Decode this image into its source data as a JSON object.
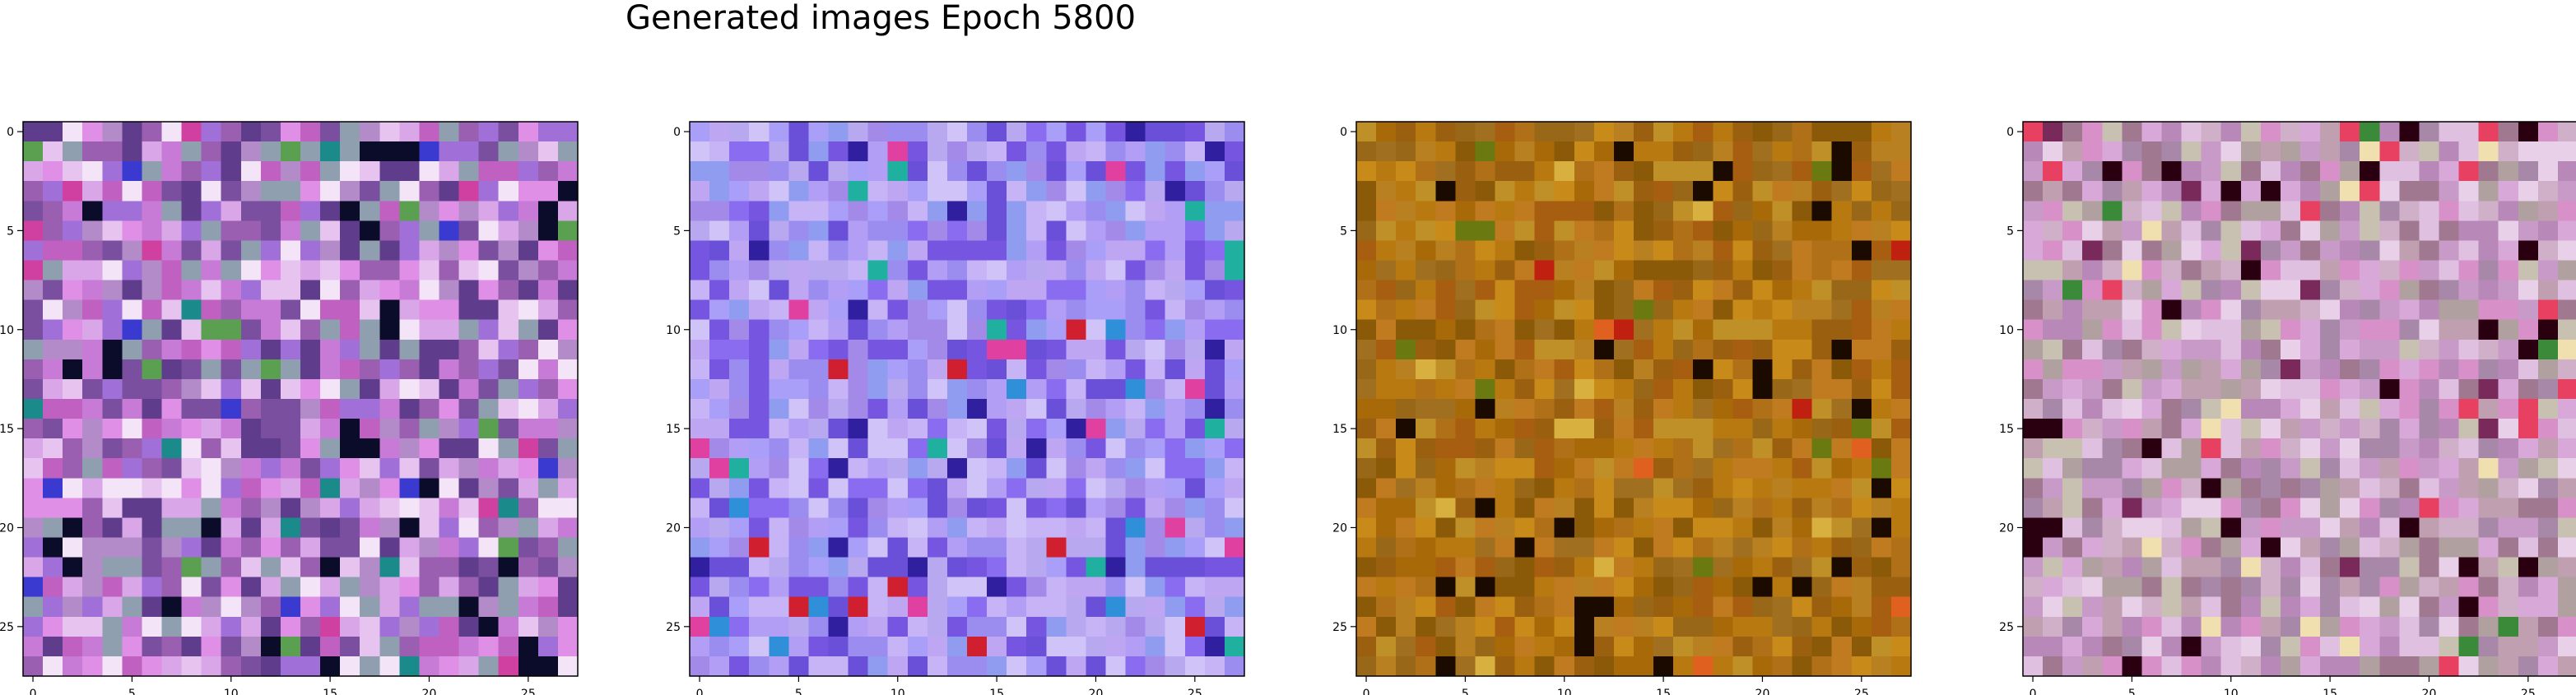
{
  "figure": {
    "suptitle": "Generated images Epoch 5800"
  },
  "chart_data": [
    {
      "type": "heatmap",
      "grid_size": [
        28,
        28
      ],
      "xticks": [
        0,
        5,
        10,
        15,
        20,
        25
      ],
      "yticks": [
        0,
        5,
        10,
        15,
        20,
        25
      ],
      "xlim": [
        -0.5,
        27.5
      ],
      "ylim": [
        27.5,
        -0.5
      ],
      "grid": false,
      "palette": [
        "#9a5fb0",
        "#c77ad6",
        "#e08fe6",
        "#b48bc9",
        "#d9a6e8",
        "#7a4fa0",
        "#e7c3f0",
        "#8f9fb0",
        "#5f3c8c",
        "#f3e4f7",
        "#c060c0",
        "#a070d8"
      ],
      "dark_color": "#0b0b2a",
      "accent_colors": [
        "#1a8a8a",
        "#3a3ad0",
        "#5aa050",
        "#d040a0"
      ]
    },
    {
      "type": "heatmap",
      "grid_size": [
        28,
        28
      ],
      "xticks": [
        0,
        5,
        10,
        15,
        20,
        25
      ],
      "yticks": [
        0,
        5,
        10,
        15,
        20,
        25
      ],
      "xlim": [
        -0.5,
        27.5
      ],
      "ylim": [
        27.5,
        -0.5
      ],
      "grid": false,
      "palette": [
        "#9b8cf0",
        "#8a6cf0",
        "#b39ef5",
        "#a48ae8",
        "#c6b4f7",
        "#7656e0",
        "#b8a8ef",
        "#d0c3f8",
        "#6a4fd8",
        "#a99ef8",
        "#8f9cf0",
        "#bfa6f2"
      ],
      "dark_color": "#3020a0",
      "accent_colors": [
        "#2f8fd8",
        "#e040a0",
        "#20b0a0",
        "#d02030"
      ]
    },
    {
      "type": "heatmap",
      "grid_size": [
        28,
        28
      ],
      "xticks": [
        0,
        5,
        10,
        15,
        20,
        25
      ],
      "yticks": [
        0,
        5,
        10,
        15,
        20,
        25
      ],
      "xlim": [
        -0.5,
        27.5
      ],
      "ylim": [
        27.5,
        -0.5
      ],
      "grid": false,
      "palette": [
        "#b87a10",
        "#a86a08",
        "#c88a18",
        "#9a6010",
        "#b07018",
        "#8a5a08",
        "#c07a20",
        "#a07020",
        "#b88020",
        "#986818",
        "#c09028",
        "#a85e10"
      ],
      "dark_color": "#1a0a00",
      "accent_colors": [
        "#e06020",
        "#6a7a10",
        "#d8b040",
        "#c02010"
      ]
    },
    {
      "type": "heatmap",
      "grid_size": [
        28,
        28
      ],
      "xticks": [
        0,
        5,
        10,
        15,
        20,
        25
      ],
      "yticks": [
        0,
        5,
        10,
        15,
        20,
        25
      ],
      "xlim": [
        -0.5,
        27.5
      ],
      "ylim": [
        27.5,
        -0.5
      ],
      "grid": false,
      "palette": [
        "#c89ac8",
        "#d8a8d8",
        "#b888b8",
        "#e0c0e0",
        "#a07890",
        "#d0b0c8",
        "#c0a0b0",
        "#e8d0e8",
        "#b0a0a0",
        "#d890c8",
        "#c8c0b0",
        "#a888a8"
      ],
      "dark_color": "#2a0010",
      "accent_colors": [
        "#3a8a3a",
        "#e84060",
        "#7a2a5a",
        "#f0e0b0"
      ]
    }
  ]
}
